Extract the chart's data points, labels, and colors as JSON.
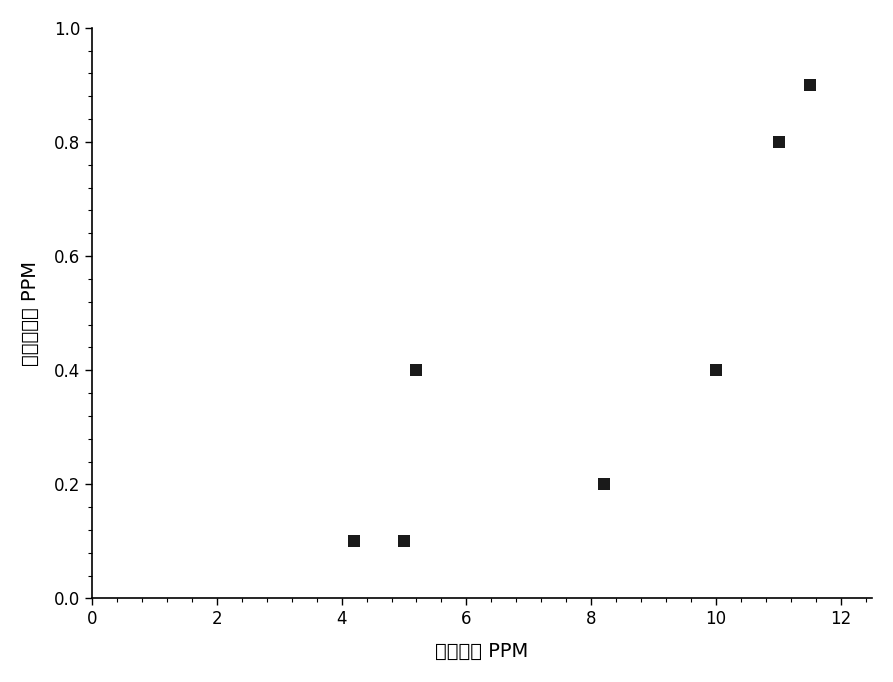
{
  "x": [
    4.2,
    5.0,
    5.2,
    8.2,
    10.0,
    11.0,
    11.5
  ],
  "y": [
    0.1,
    0.1,
    0.4,
    0.2,
    0.4,
    0.8,
    0.9
  ],
  "marker": "s",
  "marker_color": "#1a1a1a",
  "marker_size": 75,
  "xlabel": "初始浓度 PPM",
  "ylabel": "净化后浓度 PPM",
  "xlim": [
    0,
    12.5
  ],
  "ylim": [
    0.0,
    1.0
  ],
  "xticks": [
    0,
    2,
    4,
    6,
    8,
    10,
    12
  ],
  "yticks": [
    0.0,
    0.2,
    0.4,
    0.6,
    0.8,
    1.0
  ],
  "xlabel_fontsize": 14,
  "ylabel_fontsize": 14,
  "tick_fontsize": 12,
  "background_color": "#ffffff",
  "spine_color": "#000000"
}
